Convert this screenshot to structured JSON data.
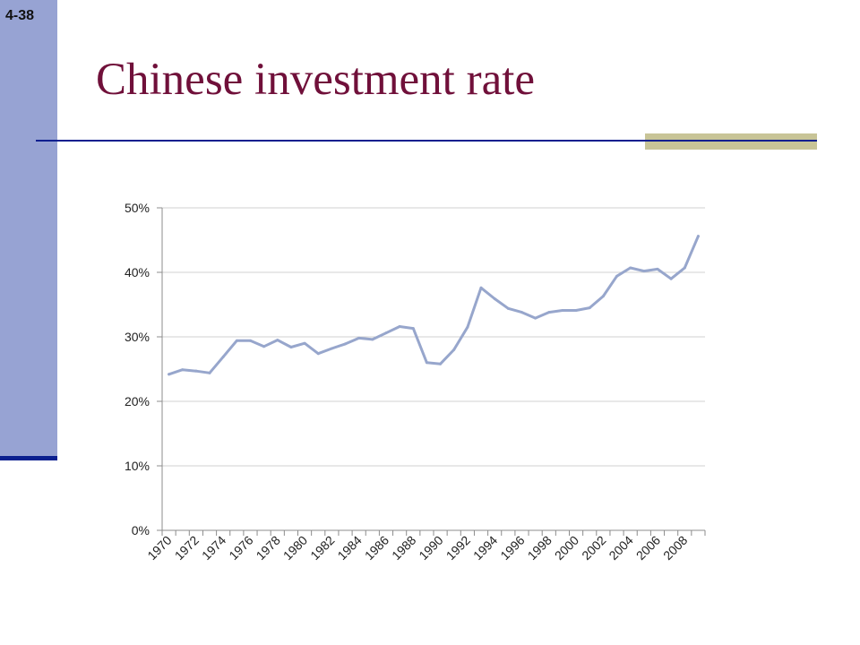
{
  "slide": {
    "number": "4-38",
    "title": "Chinese investment rate",
    "colors": {
      "title": "#70103a",
      "sidebar": "#97a3d3",
      "rule": "#0a1f8f",
      "accent": "#c8c497",
      "series": "#97a6cc"
    }
  },
  "chart_data": {
    "type": "line",
    "title": "",
    "xlabel": "",
    "ylabel": "",
    "x": [
      1970,
      1971,
      1972,
      1973,
      1974,
      1975,
      1976,
      1977,
      1978,
      1979,
      1980,
      1981,
      1982,
      1983,
      1984,
      1985,
      1986,
      1987,
      1988,
      1989,
      1990,
      1991,
      1992,
      1993,
      1994,
      1995,
      1996,
      1997,
      1998,
      1999,
      2000,
      2001,
      2002,
      2003,
      2004,
      2005,
      2006,
      2007,
      2008,
      2009
    ],
    "x_tick_labels": [
      "1970",
      "1972",
      "1974",
      "1976",
      "1978",
      "1980",
      "1982",
      "1984",
      "1986",
      "1988",
      "1990",
      "1992",
      "1994",
      "1996",
      "1998",
      "2000",
      "2002",
      "2004",
      "2006",
      "2008"
    ],
    "y_tick_labels": [
      "0%",
      "10%",
      "20%",
      "30%",
      "40%",
      "50%"
    ],
    "ylim": [
      0,
      50
    ],
    "y_unit": "%",
    "grid": true,
    "legend": "none",
    "series": [
      {
        "values": [
          24.2,
          24.9,
          24.7,
          24.4,
          26.9,
          29.4,
          29.4,
          28.5,
          29.5,
          28.4,
          29.0,
          27.4,
          28.2,
          28.9,
          29.8,
          29.6,
          30.6,
          31.6,
          31.3,
          26.0,
          25.8,
          28.0,
          31.5,
          37.6,
          35.9,
          34.4,
          33.8,
          32.9,
          33.8,
          34.1,
          34.1,
          34.5,
          36.3,
          39.4,
          40.7,
          40.2,
          40.5,
          39.0,
          40.7,
          45.6
        ],
        "color": "#97a6cc"
      }
    ]
  }
}
